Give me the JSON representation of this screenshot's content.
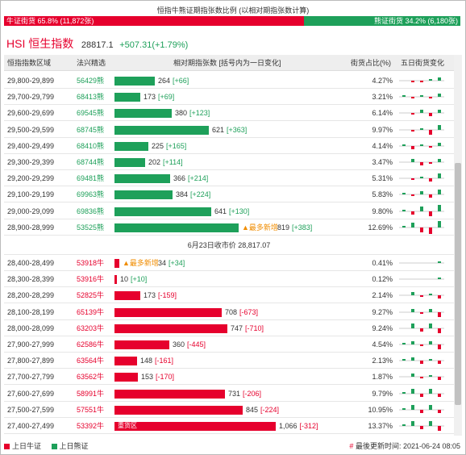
{
  "ratio": {
    "title": "恒指牛熊证期指张数比例 (以相对期指张数计算)",
    "bull_label": "牛证街货 65.8% (11,872张)",
    "bear_label": "熊证街货 34.2% (6,180张)",
    "bull_share": 0.658,
    "bull_color": "#e6002d",
    "bear_color": "#1ea05a"
  },
  "index": {
    "code": "HSI 恒生指数",
    "value": "28817.1",
    "change": "+507.31(+1.79%)"
  },
  "table": {
    "headers": {
      "range": "恒指指数区域",
      "code": "法兴精选",
      "contracts": "相对期指张数 [括号内为一日变化]",
      "share": "街货占比(%)",
      "trend": "五日街货变化"
    },
    "bear_rows": [
      {
        "range": "29,800-29,899",
        "code": "56429熊",
        "qty": 264,
        "qty_text": "264",
        "chg": "[+66]",
        "pct": "4.27%",
        "spark": [
          0,
          -1,
          -1,
          1,
          2
        ],
        "tag": ""
      },
      {
        "range": "29,700-29,799",
        "code": "68413熊",
        "qty": 173,
        "qty_text": "173",
        "chg": "[+69]",
        "pct": "3.21%",
        "spark": [
          1,
          -1,
          1,
          -1,
          2
        ],
        "tag": ""
      },
      {
        "range": "29,600-29,699",
        "code": "69545熊",
        "qty": 380,
        "qty_text": "380",
        "chg": "[+123]",
        "pct": "6.14%",
        "spark": [
          0,
          -1,
          2,
          -2,
          2
        ],
        "tag": ""
      },
      {
        "range": "29,500-29,599",
        "code": "68745熊",
        "qty": 621,
        "qty_text": "621",
        "chg": "[+363]",
        "pct": "9.97%",
        "spark": [
          0,
          -1,
          1,
          -3,
          3
        ],
        "tag": ""
      },
      {
        "range": "29,400-29,499",
        "code": "68410熊",
        "qty": 225,
        "qty_text": "225",
        "chg": "[+165]",
        "pct": "4.14%",
        "spark": [
          1,
          -2,
          1,
          -1,
          2
        ],
        "tag": ""
      },
      {
        "range": "29,300-29,399",
        "code": "68744熊",
        "qty": 202,
        "qty_text": "202",
        "chg": "[+114]",
        "pct": "3.47%",
        "spark": [
          0,
          2,
          -2,
          -1,
          2
        ],
        "tag": ""
      },
      {
        "range": "29,200-29,299",
        "code": "69481熊",
        "qty": 366,
        "qty_text": "366",
        "chg": "[+214]",
        "pct": "5.31%",
        "spark": [
          0,
          -1,
          1,
          -2,
          3
        ],
        "tag": ""
      },
      {
        "range": "29,100-29,199",
        "code": "69963熊",
        "qty": 384,
        "qty_text": "384",
        "chg": "[+224]",
        "pct": "5.83%",
        "spark": [
          1,
          -1,
          2,
          -2,
          3
        ],
        "tag": ""
      },
      {
        "range": "29,000-29,099",
        "code": "69836熊",
        "qty": 641,
        "qty_text": "641",
        "chg": "[+130]",
        "pct": "9.80%",
        "spark": [
          1,
          -2,
          3,
          -3,
          4
        ],
        "tag": ""
      },
      {
        "range": "28,900-28,999",
        "code": "53525熊",
        "qty": 819,
        "qty_text": "819",
        "chg": "[+383]",
        "pct": "12.69%",
        "spark": [
          1,
          3,
          -3,
          -4,
          4
        ],
        "tag": "▲最多新增"
      }
    ],
    "close_line": "6月23日收市价 28,817.07",
    "bull_rows": [
      {
        "range": "28,400-28,499",
        "code": "53918牛",
        "qty": 34,
        "qty_text": "34",
        "chg": "[+34]",
        "pct": "0.41%",
        "spark": [
          0,
          0,
          0,
          0,
          1
        ],
        "tag": "▲最多新增"
      },
      {
        "range": "28,300-28,399",
        "code": "53916牛",
        "qty": 10,
        "qty_text": "10",
        "chg": "[+10]",
        "pct": "0.12%",
        "spark": [
          0,
          0,
          0,
          0,
          1
        ],
        "tag": ""
      },
      {
        "range": "28,200-28,299",
        "code": "52825牛",
        "qty": 173,
        "qty_text": "173",
        "chg": "[-159]",
        "pct": "2.14%",
        "spark": [
          0,
          2,
          -1,
          1,
          -2
        ],
        "tag": ""
      },
      {
        "range": "28,100-28,199",
        "code": "65139牛",
        "qty": 708,
        "qty_text": "708",
        "chg": "[-673]",
        "pct": "9.27%",
        "spark": [
          0,
          2,
          -1,
          2,
          -3
        ],
        "tag": ""
      },
      {
        "range": "28,000-28,099",
        "code": "63203牛",
        "qty": 747,
        "qty_text": "747",
        "chg": "[-710]",
        "pct": "9.24%",
        "spark": [
          0,
          3,
          -2,
          3,
          -3
        ],
        "tag": ""
      },
      {
        "range": "27,900-27,999",
        "code": "62586牛",
        "qty": 360,
        "qty_text": "360",
        "chg": "[-445]",
        "pct": "4.54%",
        "spark": [
          1,
          2,
          -1,
          2,
          -3
        ],
        "tag": ""
      },
      {
        "range": "27,800-27,899",
        "code": "63564牛",
        "qty": 148,
        "qty_text": "148",
        "chg": "[-161]",
        "pct": "2.13%",
        "spark": [
          1,
          2,
          -2,
          1,
          -2
        ],
        "tag": ""
      },
      {
        "range": "27,700-27,799",
        "code": "63562牛",
        "qty": 153,
        "qty_text": "153",
        "chg": "[-170]",
        "pct": "1.87%",
        "spark": [
          0,
          2,
          -1,
          1,
          -2
        ],
        "tag": ""
      },
      {
        "range": "27,600-27,699",
        "code": "58991牛",
        "qty": 731,
        "qty_text": "731",
        "chg": "[-206]",
        "pct": "9.79%",
        "spark": [
          1,
          3,
          -2,
          3,
          -2
        ],
        "tag": ""
      },
      {
        "range": "27,500-27,599",
        "code": "57551牛",
        "qty": 845,
        "qty_text": "845",
        "chg": "[-224]",
        "pct": "10.95%",
        "spark": [
          1,
          3,
          -2,
          3,
          -2
        ],
        "tag": ""
      },
      {
        "range": "27,400-27,499",
        "code": "53392牛",
        "qty": 1066,
        "qty_text": "1,066",
        "chg": "[-312]",
        "pct": "13.37%",
        "spark": [
          1,
          3,
          -2,
          3,
          -3
        ],
        "tag": "重货区"
      }
    ],
    "max_qty": 1066
  },
  "footer": {
    "legend_bull": "上日牛证",
    "legend_bear": "上日熊证",
    "updated": "# 最後更新时间: 2021-06-24 08:05"
  }
}
